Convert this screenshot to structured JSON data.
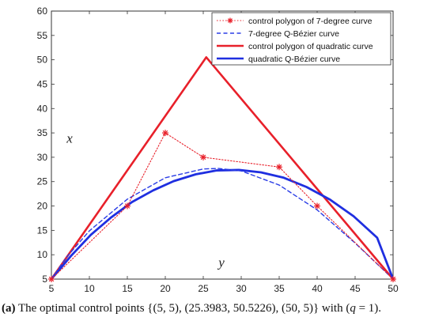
{
  "chart_data": {
    "type": "line",
    "xlim": [
      5,
      50
    ],
    "ylim": [
      5,
      60
    ],
    "x_ticks": [
      5,
      10,
      15,
      20,
      25,
      30,
      35,
      40,
      45,
      50
    ],
    "y_ticks": [
      5,
      10,
      15,
      20,
      25,
      30,
      35,
      40,
      45,
      50,
      55,
      60
    ],
    "grid": false,
    "legend_position": "top-right",
    "annotations": [
      {
        "text": "x",
        "x": 7,
        "y": 33
      },
      {
        "text": "y",
        "x": 27,
        "y": 7.5
      }
    ],
    "series": [
      {
        "name": "control polygon of 7-degree curve",
        "style": "dotted-star",
        "color": "#e8202a",
        "x": [
          5,
          15,
          20,
          25,
          35,
          40,
          50
        ],
        "y": [
          5,
          20,
          35,
          30,
          28,
          20,
          5
        ]
      },
      {
        "name": "7-degree Q-Bézier curve",
        "style": "dashed",
        "color": "#2b3ee6",
        "x": [
          5,
          7,
          10,
          15,
          20,
          25,
          27,
          30,
          35,
          40,
          45,
          50
        ],
        "y": [
          5,
          9.5,
          14.9,
          21.4,
          25.8,
          27.6,
          27.7,
          27.2,
          24.3,
          19.2,
          12.4,
          5
        ]
      },
      {
        "name": "control polygon of quadratic curve",
        "style": "solid",
        "color": "#e8202a",
        "x": [
          5,
          25.3983,
          50
        ],
        "y": [
          5,
          50.5226,
          5
        ]
      },
      {
        "name": "quadratic Q-Bézier curve",
        "style": "solid-thick",
        "color": "#1f2fe0",
        "x": [
          5,
          7.6,
          10.2,
          12.9,
          15.6,
          18.4,
          21.1,
          24.0,
          26.8,
          29.7,
          32.6,
          35.6,
          38.6,
          41.7,
          44.8,
          47.9,
          50
        ],
        "y": [
          5,
          9.8,
          14.1,
          17.7,
          20.8,
          23.2,
          25.1,
          26.5,
          27.3,
          27.4,
          26.9,
          25.8,
          23.9,
          21.3,
          17.9,
          13.5,
          5
        ]
      }
    ]
  },
  "caption": {
    "label": "(a)",
    "text": " The optimal control points {(5, 5), (25.3983, 50.5226), (50, 5)} with (",
    "q_symbol": "q",
    "q_value": " = 1)."
  }
}
